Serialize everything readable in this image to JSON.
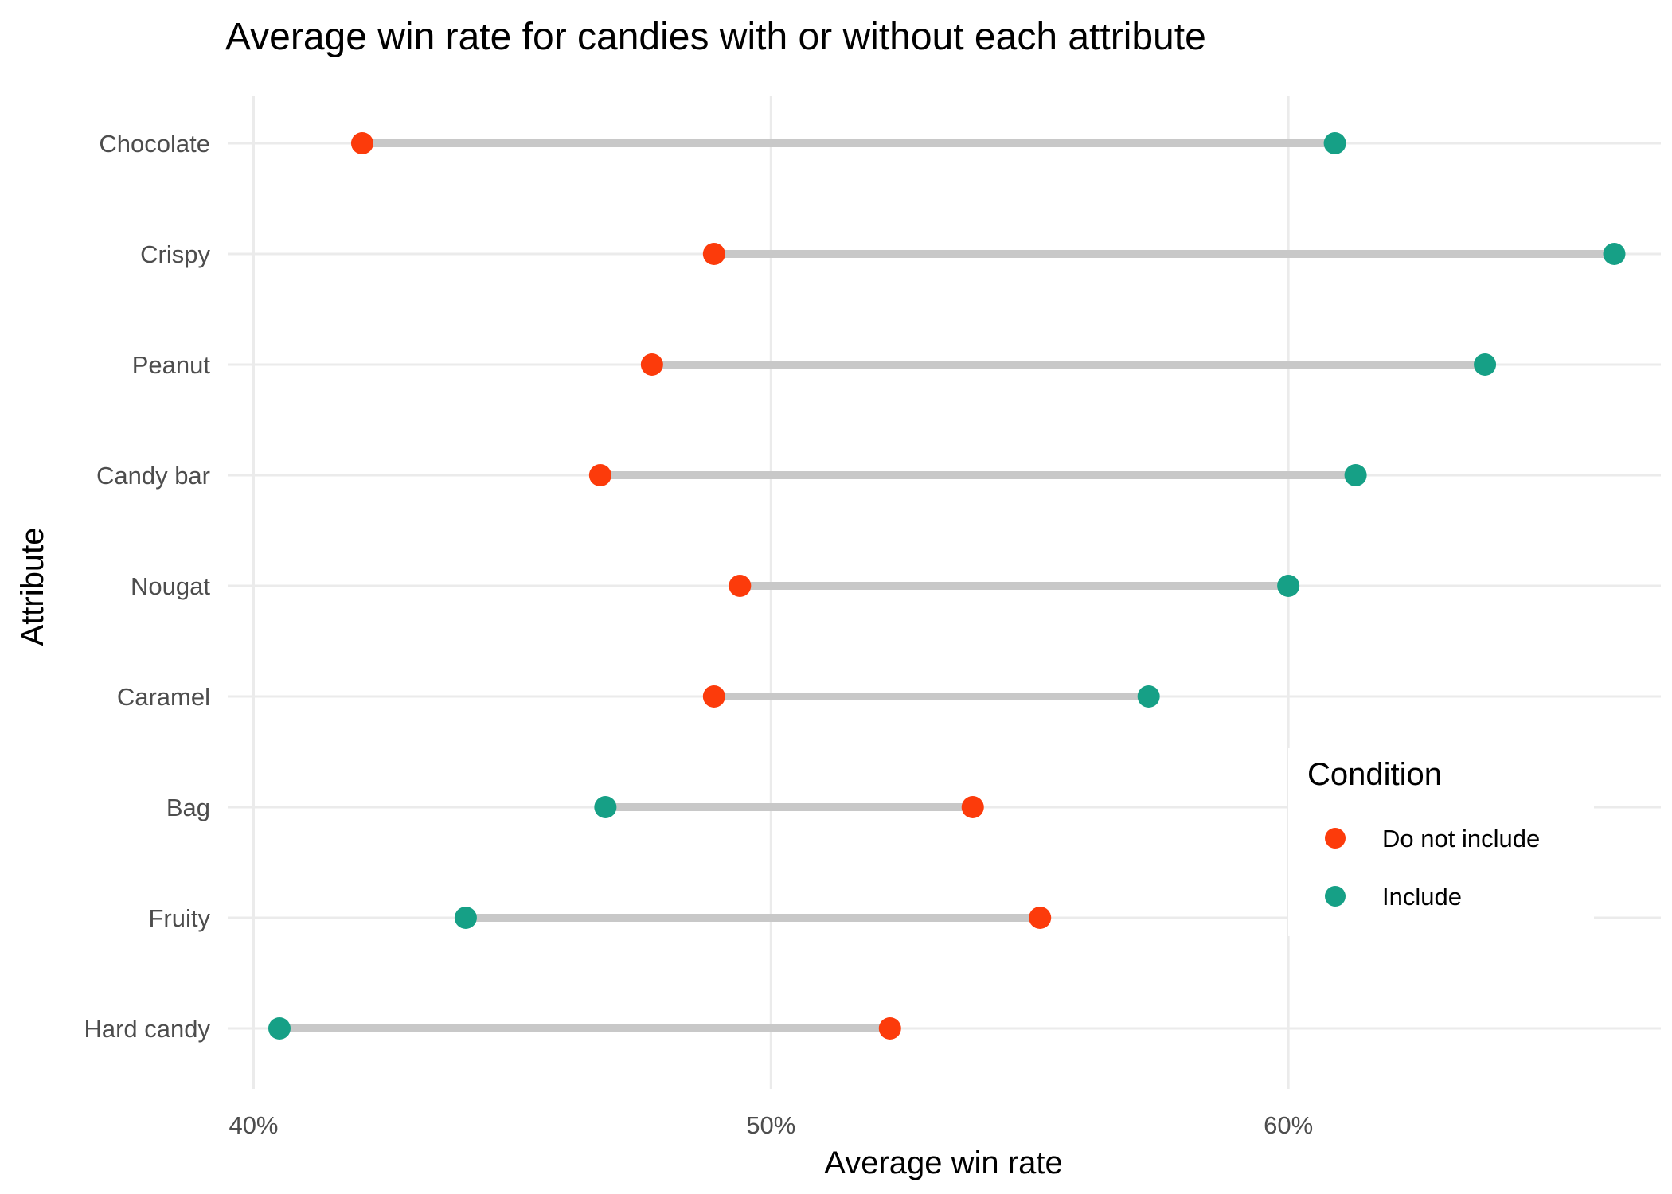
{
  "chart_data": {
    "type": "dumbbell",
    "title": "Average win rate for candies with or without each attribute",
    "xlabel": "Average win rate",
    "ylabel": "Attribute",
    "xlim": [
      39.5,
      67.2
    ],
    "x_ticks": [
      40,
      50,
      60
    ],
    "x_tick_labels": [
      "40%",
      "50%",
      "60%"
    ],
    "categories": [
      "Chocolate",
      "Crispy",
      "Peanut",
      "Candy bar",
      "Nougat",
      "Caramel",
      "Bag",
      "Fruity",
      "Hard candy"
    ],
    "series": [
      {
        "name": "Do not include",
        "color": "#fc3b0b",
        "values": [
          42.1,
          48.9,
          47.7,
          46.7,
          49.4,
          48.9,
          53.9,
          55.2,
          52.3
        ]
      },
      {
        "name": "Include",
        "color": "#16a086",
        "values": [
          60.9,
          66.3,
          63.8,
          61.3,
          60.0,
          57.3,
          46.8,
          44.1,
          40.5
        ]
      }
    ],
    "legend": {
      "title": "Condition",
      "position": "right-bottom-inside",
      "items": [
        "Do not include",
        "Include"
      ]
    },
    "grid": true
  }
}
